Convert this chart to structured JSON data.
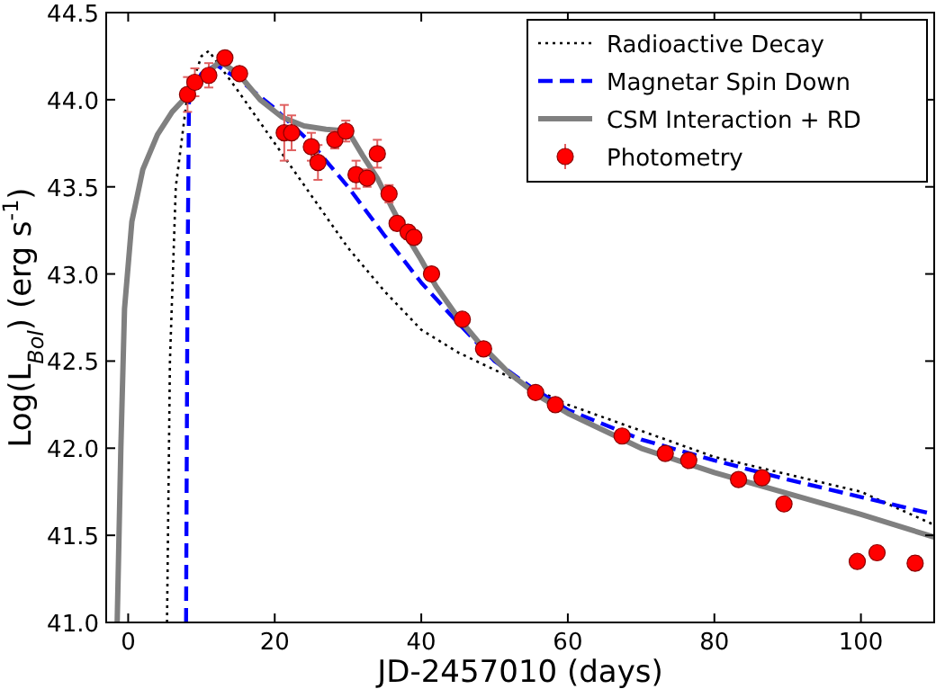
{
  "chart_data": {
    "type": "line",
    "xlabel": "JD-2457010 (days)",
    "ylabel": "Log(L$_{Bol}$) (erg s$^{-1}$)",
    "xlim": [
      -3,
      110
    ],
    "xticks": [
      0,
      20,
      40,
      60,
      80,
      100
    ],
    "ylim": [
      41.0,
      44.5
    ],
    "yticks": [
      {
        "value": 41,
        "label": "41.0"
      },
      {
        "value": 41.5,
        "label": "41.5"
      },
      {
        "value": 42,
        "label": "42.0"
      },
      {
        "value": 42.5,
        "label": "42.5"
      },
      {
        "value": 43,
        "label": "43.0"
      },
      {
        "value": 43.5,
        "label": "43.5"
      },
      {
        "value": 44,
        "label": "44.0"
      },
      {
        "value": 44.5,
        "label": "44.5"
      }
    ],
    "grid": false,
    "legend": "top right",
    "series": [
      {
        "name": "Radioactive Decay",
        "color": "#000000",
        "line_style": "dotted",
        "x": [
          5.3,
          5.7,
          6.5,
          8,
          10,
          11,
          15,
          20,
          25,
          30,
          35,
          40,
          45,
          50,
          55,
          60,
          70,
          80,
          90,
          100,
          110
        ],
        "values": [
          41.0,
          42.5,
          43.5,
          44.0,
          44.25,
          44.28,
          44.05,
          43.75,
          43.45,
          43.15,
          42.9,
          42.68,
          42.55,
          42.45,
          42.35,
          42.25,
          42.1,
          41.95,
          41.85,
          41.75,
          41.56
        ]
      },
      {
        "name": "Magnetar Spin Down",
        "color": "#0000ff",
        "line_style": "dashed",
        "x": [
          7.9,
          8.1,
          8.3,
          10,
          12,
          15,
          20,
          25,
          30,
          35,
          40,
          45,
          50,
          55,
          60,
          70,
          80,
          90,
          100,
          110
        ],
        "values": [
          41.0,
          43.0,
          44.0,
          44.15,
          44.2,
          44.12,
          43.95,
          43.75,
          43.5,
          43.22,
          42.95,
          42.72,
          42.5,
          42.35,
          42.22,
          42.05,
          41.93,
          41.82,
          41.72,
          41.62
        ]
      },
      {
        "name": "CSM Interaction + RD",
        "color": "#808080",
        "line_style": "solid",
        "x": [
          -1.5,
          -1,
          -0.5,
          0.5,
          2,
          4,
          6,
          8,
          10,
          12.5,
          15,
          18,
          21,
          24,
          27,
          30,
          32,
          34,
          36,
          38,
          40,
          42,
          45,
          48,
          52,
          56,
          60,
          70,
          80,
          90,
          100,
          110
        ],
        "values": [
          41.0,
          42.0,
          42.8,
          43.3,
          43.6,
          43.8,
          43.93,
          44.02,
          44.12,
          44.22,
          44.15,
          44.0,
          43.9,
          43.85,
          43.83,
          43.82,
          43.68,
          43.55,
          43.38,
          43.22,
          43.08,
          42.93,
          42.75,
          42.6,
          42.43,
          42.3,
          42.2,
          42.0,
          41.86,
          41.74,
          41.62,
          41.49
        ]
      },
      {
        "name": "Photometry",
        "type": "scatter",
        "color": "#ff0000",
        "marker": "circle",
        "x": [
          8.1,
          9.1,
          11,
          13.2,
          15.2,
          21.3,
          22.3,
          25,
          25.9,
          28.2,
          29.7,
          31.1,
          32.6,
          34,
          35.6,
          36.7,
          38.2,
          39,
          41.4,
          45.6,
          48.5,
          55.6,
          58.3,
          67.4,
          73.3,
          76.5,
          83.3,
          86.5,
          89.5,
          99.5,
          102.2,
          107.4
        ],
        "values": [
          44.03,
          44.1,
          44.14,
          44.24,
          44.15,
          43.81,
          43.81,
          43.73,
          43.64,
          43.77,
          43.82,
          43.57,
          43.55,
          43.69,
          43.46,
          43.29,
          43.24,
          43.21,
          43.0,
          42.74,
          42.57,
          42.32,
          42.25,
          42.07,
          41.97,
          41.93,
          41.82,
          41.83,
          41.68,
          41.35,
          41.4,
          41.34
        ],
        "errors": [
          0.1,
          0.08,
          0.07,
          0.03,
          0.03,
          0.16,
          0.1,
          0.08,
          0.1,
          0.05,
          0.06,
          0.08,
          0.05,
          0.08,
          0.05,
          0.04,
          0.04,
          0.04,
          0.03,
          0.03,
          0.03,
          0.03,
          0.03,
          0.03,
          0.03,
          0.03,
          0.03,
          0.03,
          0.03,
          0.03,
          0.04,
          0.04
        ]
      }
    ]
  }
}
